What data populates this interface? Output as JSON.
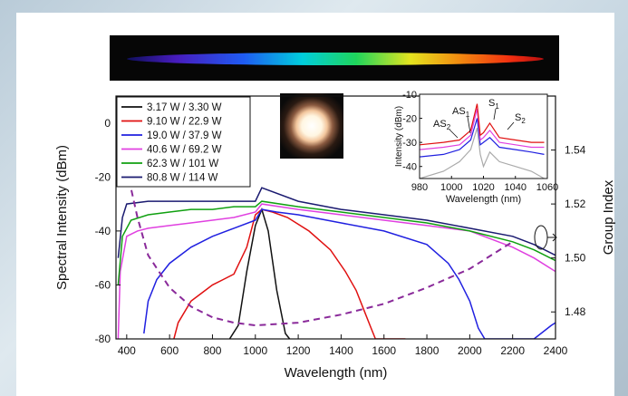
{
  "chart_data": [
    {
      "type": "line",
      "xlabel": "Wavelength (nm)",
      "ylabel": "Spectral Intensity (dBm)",
      "y2label": "Group Index",
      "xlim": [
        350,
        2400
      ],
      "ylim": [
        -80,
        10
      ],
      "y2lim": [
        1.47,
        1.56
      ],
      "xticks": [
        400,
        600,
        800,
        1000,
        1200,
        1400,
        1600,
        1800,
        2000,
        2200,
        2400
      ],
      "yticks": [
        0,
        -20,
        -40,
        -60,
        -80
      ],
      "y2ticks": [
        1.48,
        1.5,
        1.52,
        1.54
      ],
      "legend_position": "top-left",
      "series": [
        {
          "name": "3.17 W / 3.30 W",
          "color": "#111111",
          "x": [
            880,
            920,
            960,
            1000,
            1030,
            1060,
            1100,
            1140,
            1160
          ],
          "y": [
            -80,
            -75,
            -55,
            -38,
            -32,
            -40,
            -62,
            -78,
            -80
          ]
        },
        {
          "name": "9.10 W / 22.9 W",
          "color": "#e01010",
          "x": [
            620,
            640,
            700,
            750,
            800,
            850,
            900,
            960,
            1000,
            1030,
            1080,
            1150,
            1250,
            1350,
            1420,
            1470,
            1510,
            1540,
            1560,
            1700
          ],
          "y": [
            -80,
            -74,
            -66,
            -63,
            -60,
            -58,
            -56,
            -46,
            -34,
            -32,
            -33,
            -35,
            -40,
            -47,
            -55,
            -62,
            -70,
            -76,
            -80,
            -80
          ]
        },
        {
          "name": "19.0 W / 37.9 W",
          "color": "#2020e0",
          "x": [
            480,
            500,
            540,
            600,
            700,
            800,
            900,
            1000,
            1030,
            1100,
            1200,
            1400,
            1600,
            1800,
            1900,
            1950,
            2000,
            2040,
            2070,
            2100,
            2300,
            2380,
            2400
          ],
          "y": [
            -78,
            -66,
            -58,
            -52,
            -46,
            -42,
            -39,
            -36,
            -32,
            -33,
            -34,
            -37,
            -40,
            -45,
            -52,
            -58,
            -66,
            -76,
            -80,
            -80,
            -80,
            -75,
            -74
          ]
        },
        {
          "name": "40.6 W / 69.2 W",
          "color": "#e040e0",
          "x": [
            360,
            370,
            400,
            450,
            500,
            600,
            700,
            800,
            900,
            1000,
            1030,
            1200,
            1400,
            1600,
            1800,
            2000,
            2100,
            2200,
            2300,
            2400
          ],
          "y": [
            -80,
            -55,
            -42,
            -40,
            -39,
            -38,
            -37,
            -36,
            -35,
            -33,
            -30,
            -32,
            -34,
            -36,
            -38,
            -40,
            -43,
            -46,
            -50,
            -55
          ]
        },
        {
          "name": "62.3 W / 101  W",
          "color": "#10a010",
          "x": [
            360,
            380,
            420,
            500,
            600,
            700,
            800,
            900,
            1000,
            1030,
            1200,
            1400,
            1600,
            1800,
            2000,
            2200,
            2300,
            2400
          ],
          "y": [
            -60,
            -42,
            -36,
            -34,
            -33,
            -32,
            -32,
            -31,
            -31,
            -29,
            -31,
            -33,
            -35,
            -37,
            -40,
            -44,
            -47,
            -51
          ]
        },
        {
          "name": "80.8 W / 114  W",
          "color": "#1a1a70",
          "x": [
            360,
            380,
            400,
            500,
            600,
            800,
            1000,
            1030,
            1200,
            1400,
            1600,
            1800,
            2000,
            2200,
            2300,
            2400
          ],
          "y": [
            -50,
            -35,
            -30,
            -29,
            -29,
            -29,
            -29,
            -24,
            -29,
            -32,
            -34,
            -36,
            -39,
            -42,
            -45,
            -49
          ]
        },
        {
          "name": "",
          "color": "#8a2a9a",
          "dashed": true,
          "axis": "y2",
          "x": [
            400,
            450,
            500,
            600,
            700,
            800,
            900,
            1000,
            1200,
            1400,
            1600,
            1800,
            2000,
            2200
          ],
          "y": [
            1.533,
            1.515,
            1.501,
            1.489,
            1.482,
            1.478,
            1.476,
            1.475,
            1.476,
            1.479,
            1.483,
            1.489,
            1.496,
            1.506
          ]
        }
      ]
    },
    {
      "type": "line",
      "xlabel": "Wavelength (nm)",
      "ylabel": "Intensity (dBm)",
      "xlim": [
        980,
        1060
      ],
      "ylim": [
        -45,
        -10
      ],
      "xticks": [
        980,
        1000,
        1020,
        1040,
        1060
      ],
      "yticks": [
        -10,
        -20,
        -30,
        -40
      ],
      "annotations": [
        "AS2",
        "AS1",
        "S1",
        "S2"
      ],
      "series": [
        {
          "name": "",
          "color": "#aaaaaa",
          "x": [
            980,
            995,
            1005,
            1012,
            1016,
            1018,
            1020,
            1024,
            1030,
            1040,
            1050,
            1058
          ],
          "y": [
            -45,
            -42,
            -38,
            -33,
            -24,
            -35,
            -40,
            -34,
            -38,
            -40,
            -42,
            -45
          ]
        },
        {
          "name": "",
          "color": "#2020e0",
          "x": [
            980,
            995,
            1005,
            1012,
            1016,
            1018,
            1020,
            1024,
            1030,
            1040,
            1050,
            1058
          ],
          "y": [
            -36,
            -35,
            -33,
            -29,
            -20,
            -31,
            -30,
            -28,
            -32,
            -33,
            -34,
            -35
          ]
        },
        {
          "name": "",
          "color": "#e040e0",
          "x": [
            980,
            995,
            1005,
            1012,
            1016,
            1018,
            1020,
            1024,
            1030,
            1040,
            1050,
            1058
          ],
          "y": [
            -33,
            -32,
            -31,
            -27,
            -16,
            -29,
            -28,
            -25,
            -30,
            -31,
            -32,
            -32
          ]
        },
        {
          "name": "",
          "color": "#e01010",
          "x": [
            980,
            995,
            1005,
            1012,
            1016,
            1018,
            1020,
            1024,
            1030,
            1040,
            1050,
            1058
          ],
          "y": [
            -31,
            -30,
            -29,
            -25,
            -14,
            -27,
            -26,
            -22,
            -28,
            -29,
            -30,
            -30
          ]
        }
      ]
    }
  ]
}
